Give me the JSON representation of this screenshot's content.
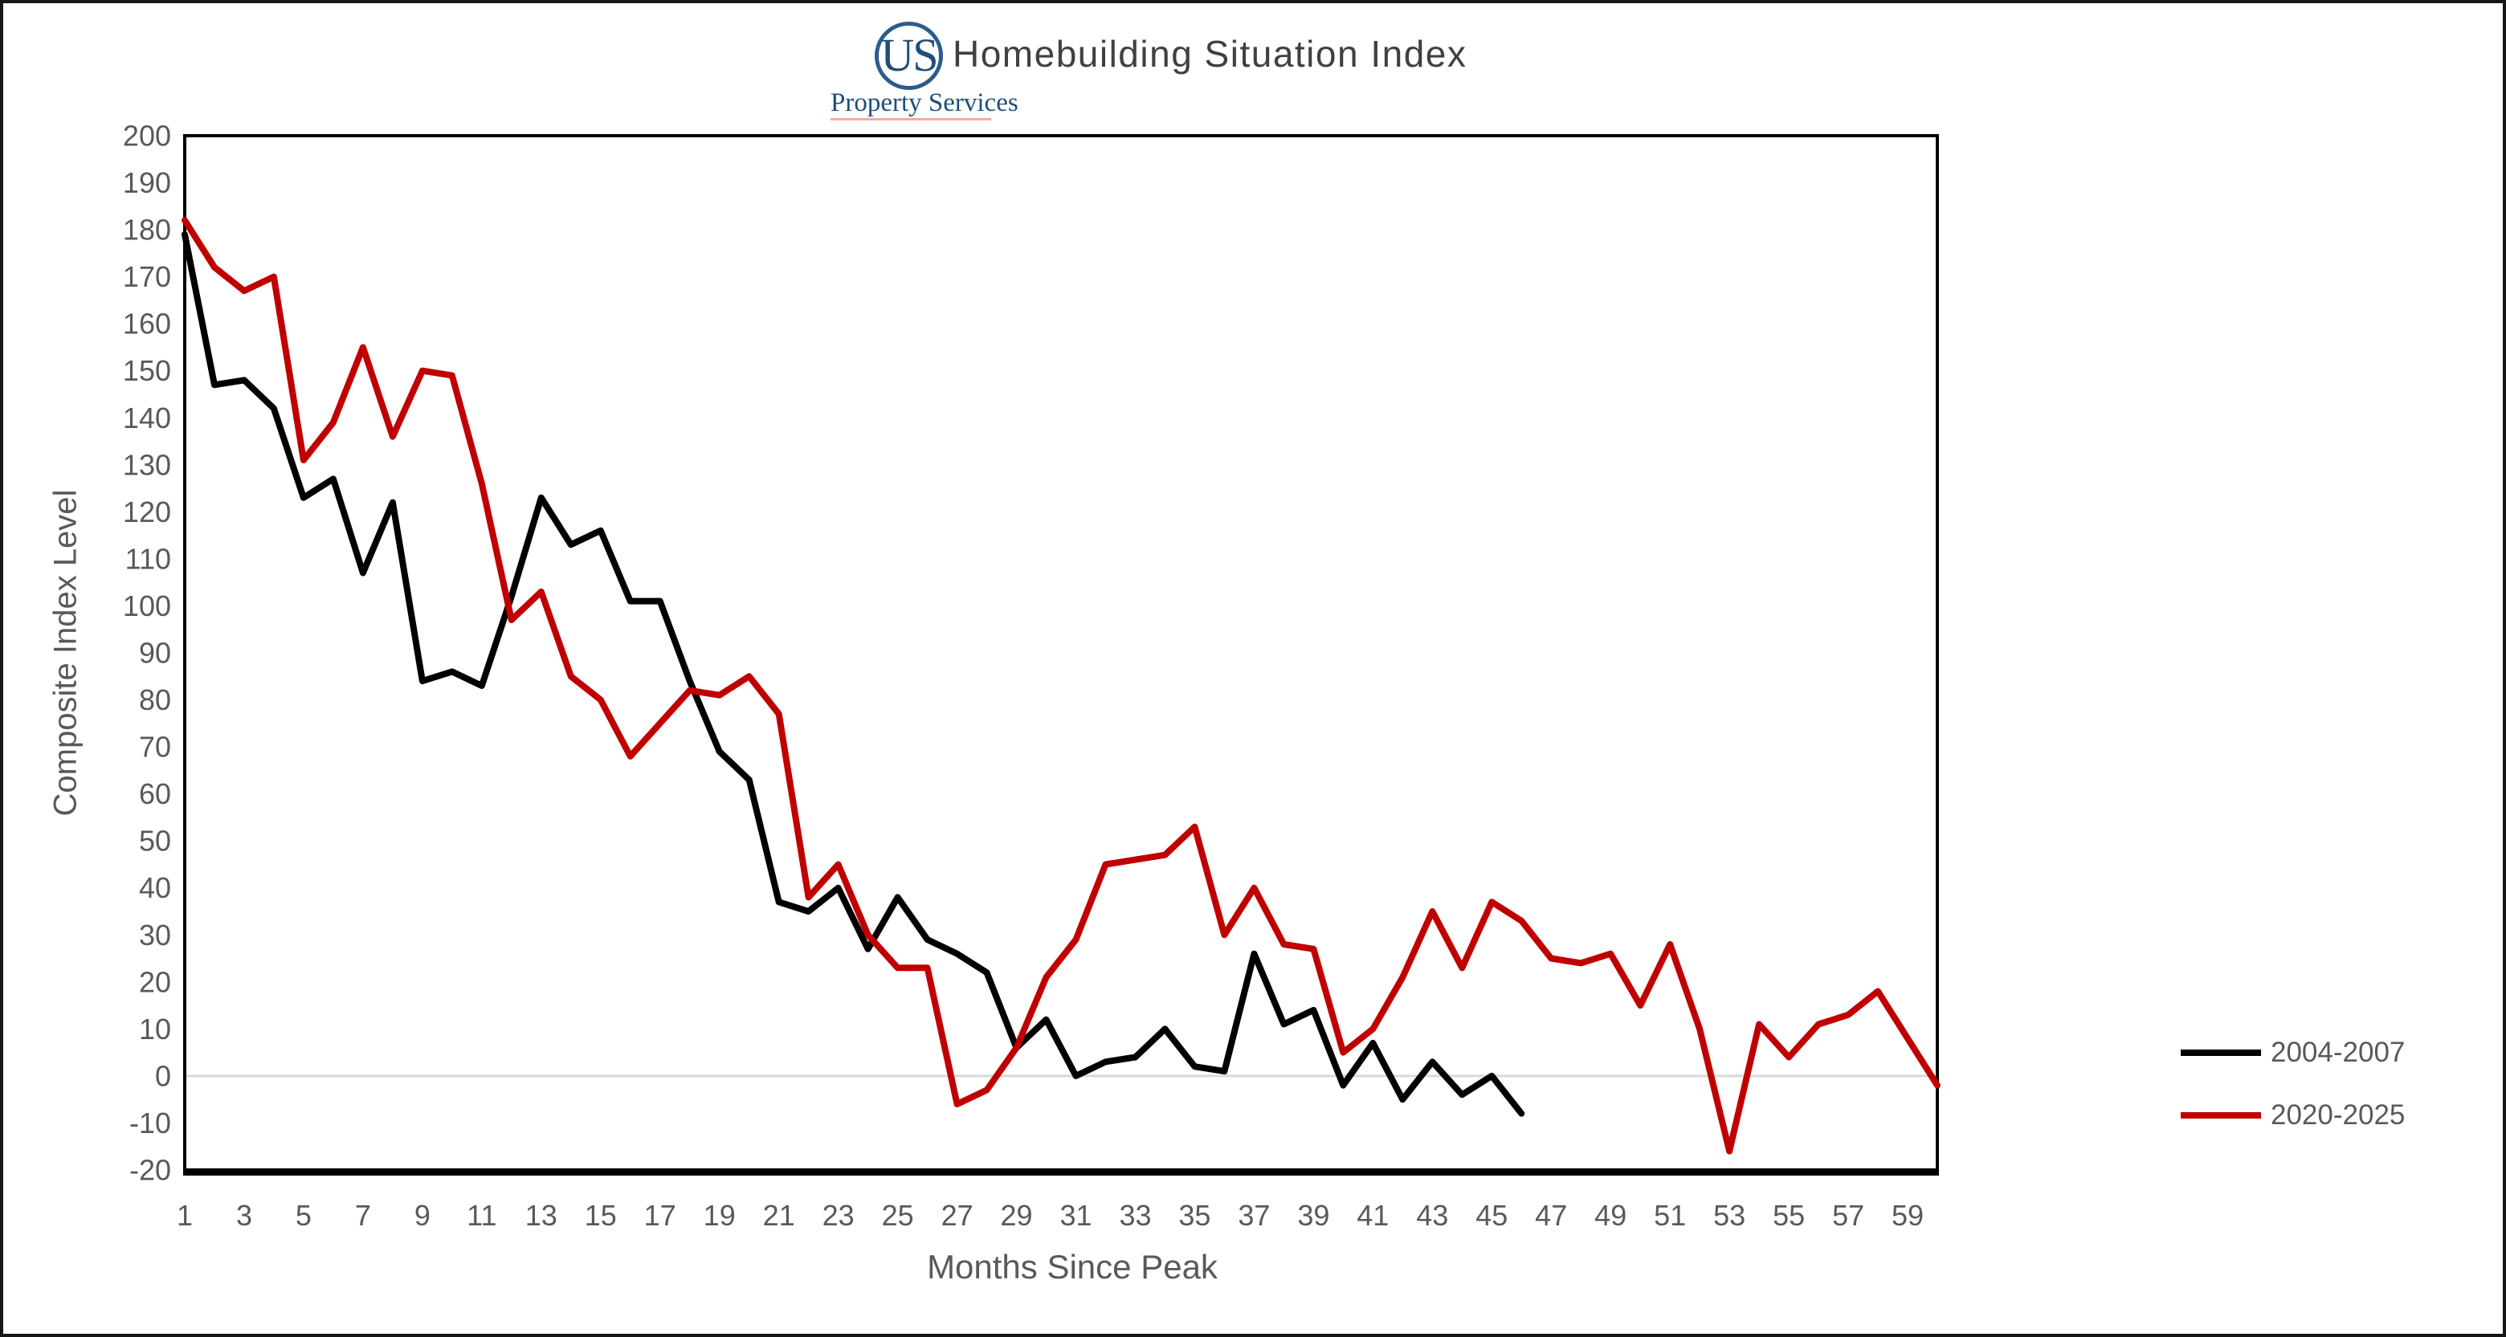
{
  "page": {
    "background": "#ffffff",
    "frame_color": "#161616"
  },
  "logo": {
    "monogram": "US",
    "subtitle": "Property Services",
    "text_color": "#1F4E79",
    "ring_color": "#2B5C8D",
    "underline_color": "#F5A9A9"
  },
  "header": {
    "title": "Homebuilding Situation Index",
    "title_color": "#404040"
  },
  "chart_data": {
    "type": "line",
    "title": "Homebuilding Situation Index",
    "xlabel": "Months Since Peak",
    "ylabel": "Composite Index Level",
    "xlim": [
      1,
      60
    ],
    "ylim": [
      -20,
      200
    ],
    "x_ticks": [
      1,
      3,
      5,
      7,
      9,
      11,
      13,
      15,
      17,
      19,
      21,
      23,
      25,
      27,
      29,
      31,
      33,
      35,
      37,
      39,
      41,
      43,
      45,
      47,
      49,
      51,
      53,
      55,
      57,
      59
    ],
    "y_ticks": [
      200,
      190,
      180,
      170,
      160,
      150,
      140,
      130,
      120,
      110,
      100,
      90,
      80,
      70,
      60,
      50,
      40,
      30,
      20,
      10,
      0,
      -10,
      -20
    ],
    "grid": "zero-line-only",
    "zero_line_color": "#D9D9D9",
    "axis_text_color": "#595959",
    "axis_line_color": "#000000",
    "legend_position": "right-middle",
    "series": [
      {
        "name": "2004-2007",
        "color": "#000000",
        "x_start": 1,
        "x_step": 1,
        "values": [
          179,
          147,
          148,
          142,
          123,
          127,
          107,
          122,
          84,
          86,
          83,
          102,
          123,
          113,
          116,
          101,
          101,
          84,
          69,
          63,
          37,
          35,
          40,
          27,
          38,
          29,
          26,
          22,
          6,
          12,
          0,
          3,
          4,
          10,
          2,
          1,
          26,
          11,
          14,
          -2,
          7,
          -5,
          3,
          -4,
          0,
          -8
        ]
      },
      {
        "name": "2020-2025",
        "color": "#C00000",
        "x_start": 1,
        "x_step": 1,
        "values": [
          182,
          172,
          167,
          170,
          131,
          139,
          155,
          136,
          150,
          149,
          126,
          97,
          103,
          85,
          80,
          68,
          75,
          82,
          81,
          85,
          77,
          38,
          45,
          30,
          23,
          23,
          -6,
          -3,
          6,
          21,
          29,
          45,
          46,
          47,
          53,
          30,
          40,
          28,
          27,
          5,
          10,
          21,
          35,
          23,
          37,
          33,
          25,
          24,
          26,
          15,
          28,
          10,
          -16,
          11,
          4,
          11,
          13,
          18,
          8,
          -2
        ]
      }
    ]
  }
}
